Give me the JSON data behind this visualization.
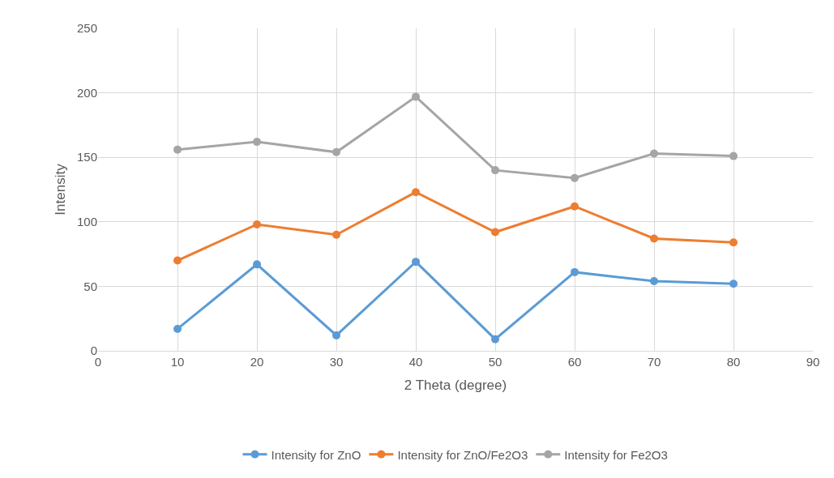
{
  "chart_data": {
    "type": "line",
    "xlabel": "2 Theta (degree)",
    "ylabel": "Intensity",
    "x": [
      10,
      20,
      30,
      40,
      50,
      60,
      70,
      80
    ],
    "series": [
      {
        "name": "Intensity for ZnO",
        "color": "#5b9bd5",
        "values": [
          17,
          67,
          12,
          69,
          9,
          61,
          54,
          52
        ]
      },
      {
        "name": "Intensity for ZnO/Fe2O3",
        "color": "#ed7d31",
        "values": [
          70,
          98,
          90,
          123,
          92,
          112,
          87,
          84
        ]
      },
      {
        "name": "Intensity for Fe2O3",
        "color": "#a5a5a5",
        "values": [
          156,
          162,
          154,
          197,
          140,
          134,
          153,
          151
        ]
      }
    ],
    "xlim": [
      0,
      90
    ],
    "xticks": [
      0,
      10,
      20,
      30,
      40,
      50,
      60,
      70,
      80,
      90
    ],
    "ylim": [
      0,
      250
    ],
    "yticks": [
      0,
      50,
      100,
      150,
      200,
      250
    ],
    "grid": true,
    "legend": "bottom",
    "marker": "circle",
    "line_style": "solid"
  }
}
